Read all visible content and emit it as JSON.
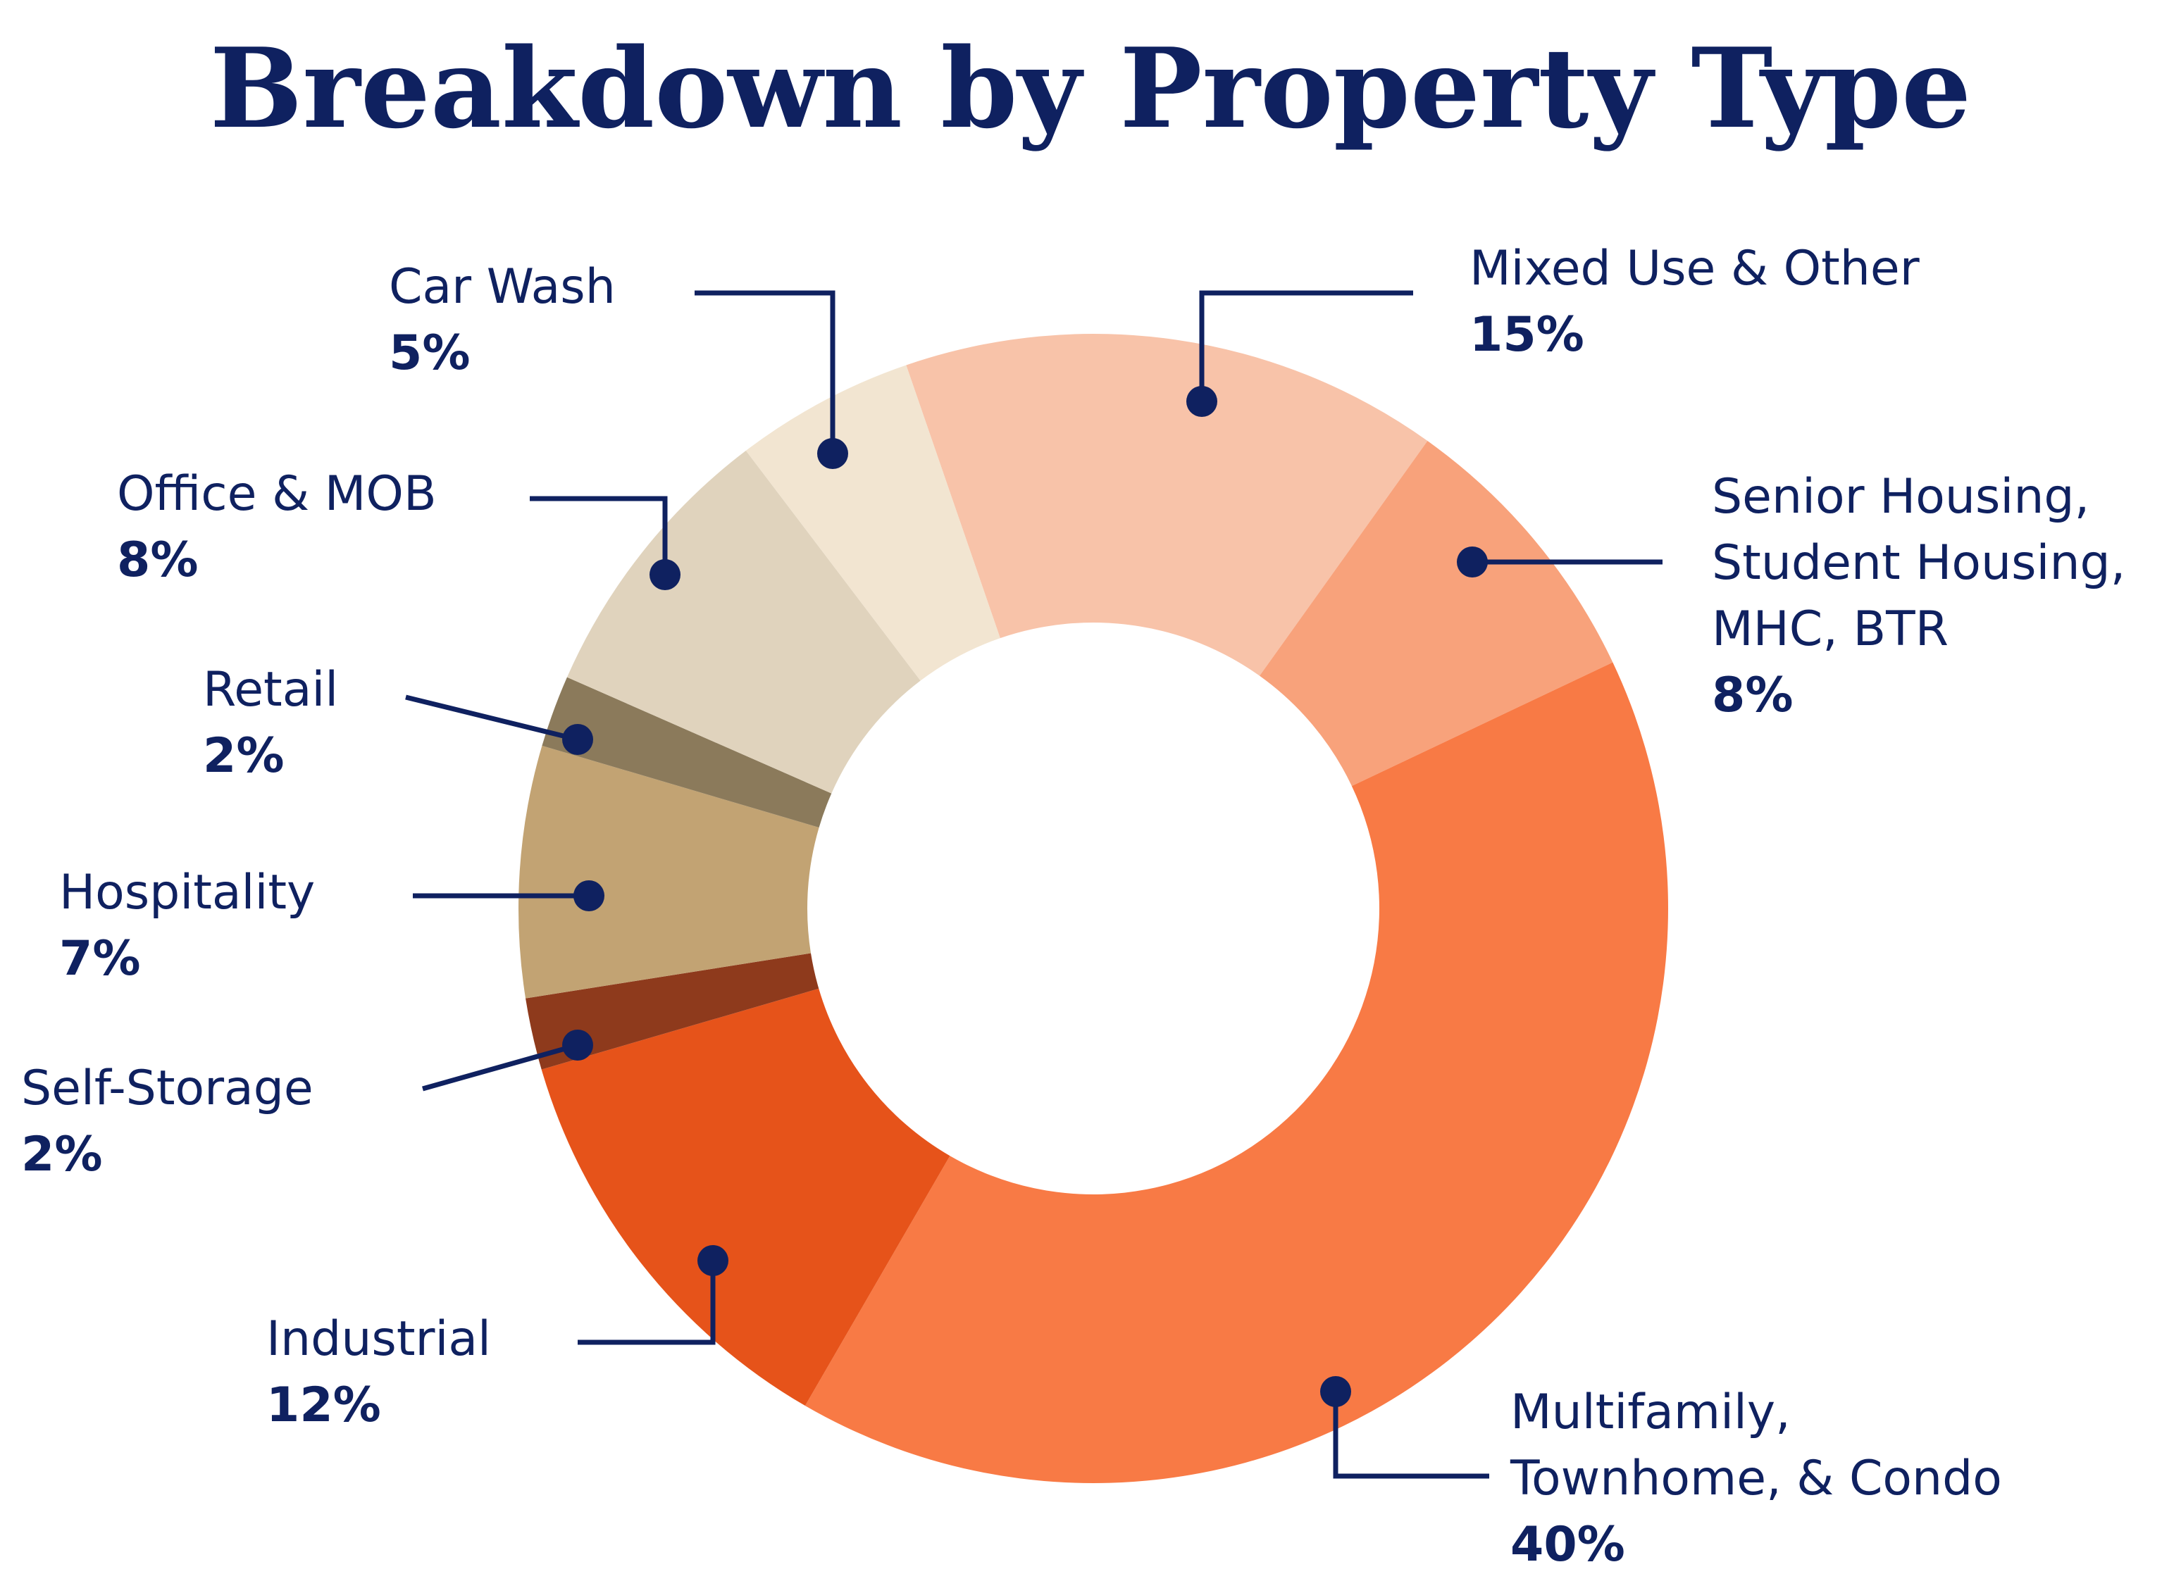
{
  "chart_data": {
    "type": "donut",
    "title": "Breakdown by Property Type",
    "categories": [
      "Mixed Use & Other",
      "Senior Housing,\nStudent Housing,\nMHC, BTR",
      "Multifamily,\nTownhome, & Condo",
      "Industrial",
      "Self-Storage",
      "Hospitality",
      "Retail",
      "Office & MOB",
      "Car Wash"
    ],
    "values": [
      15,
      8,
      40,
      12,
      2,
      7,
      2,
      8,
      5
    ],
    "value_labels": [
      "15%",
      "8%",
      "40%",
      "12%",
      "2%",
      "7%",
      "2%",
      "8%",
      "5%"
    ],
    "colors": [
      "#f8c3a9",
      "#f8a27b",
      "#f87a45",
      "#e6531a",
      "#8e3a1c",
      "#c2a373",
      "#8b7a5b",
      "#e0d3bd",
      "#f2e5d1"
    ]
  }
}
